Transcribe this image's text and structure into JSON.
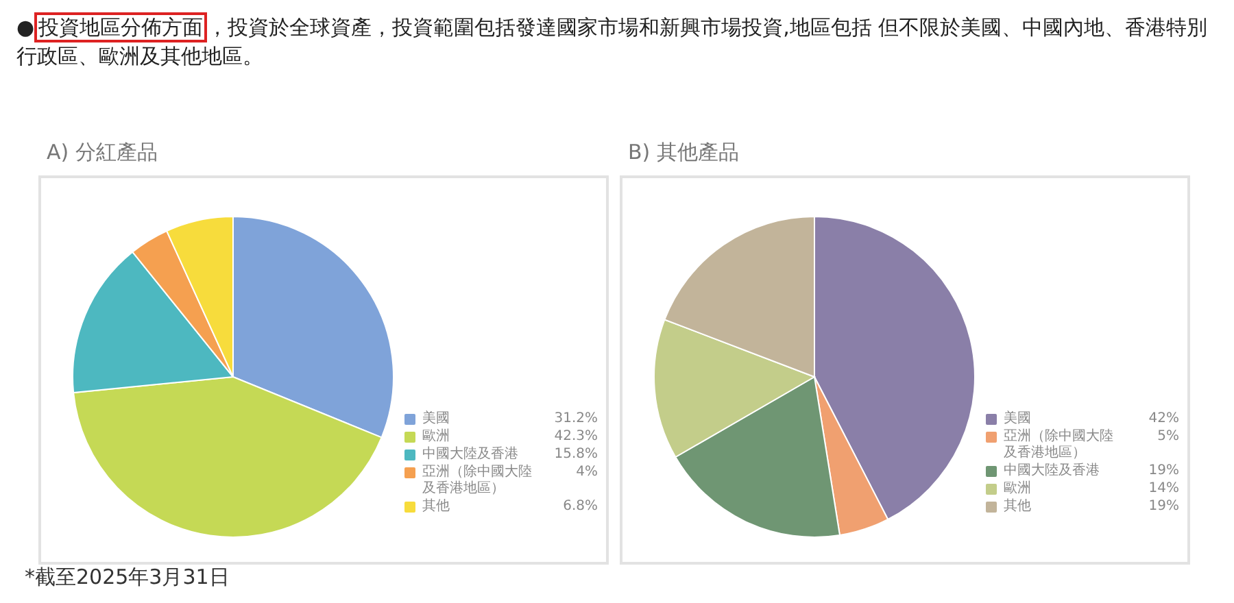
{
  "chart_data": [
    {
      "type": "pie",
      "title": "A) 分紅產品",
      "annotations": [
        "●",
        "投資地區分佈方面",
        "，投資於全球資產，投資範圍包括發達國家市場和新興市場投資,地區包括 但不限於美國、中國內地、香港特別行政區、歐洲及其他地區。",
        "*截至2025年3月31日"
      ],
      "categories": [
        "美國",
        "歐洲",
        "中國大陸及香港",
        "亞洲（除中國大陸及香港地區）",
        "其他"
      ],
      "values": [
        31.2,
        42.3,
        15.8,
        4,
        6.8
      ],
      "value_labels": [
        "31.2%",
        "42.3%",
        "15.8%",
        "4%",
        "6.8%"
      ],
      "colors": [
        "#7fa3d9",
        "#c5d955",
        "#4db8c0",
        "#f5a050",
        "#f7dc3c"
      ],
      "legend": "bottom right"
    },
    {
      "type": "pie",
      "title": "B) 其他產品",
      "categories": [
        "美國",
        "亞洲（除中國大陸及香港地區）",
        "中國大陸及香港",
        "歐洲",
        "其他"
      ],
      "values": [
        42,
        5,
        19,
        14,
        19
      ],
      "value_labels": [
        "42%",
        "5%",
        "19%",
        "14%",
        "19%"
      ],
      "colors": [
        "#8a7fa8",
        "#f0a070",
        "#6f9673",
        "#c3cd8a",
        "#c2b49a"
      ],
      "legend": "bottom right"
    }
  ]
}
